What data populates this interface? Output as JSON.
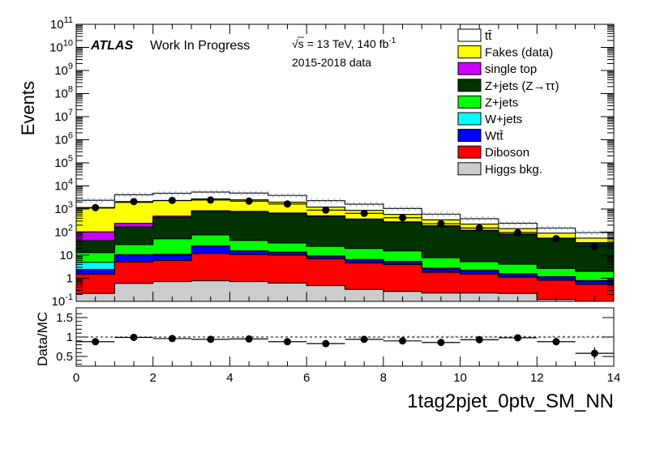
{
  "header": {
    "atlas": "ATLAS",
    "status": "Work In Progress",
    "energy": "√s = 13 TeV, 140 fb",
    "lumi_exp": "-1",
    "dataset": "2015-2018 data"
  },
  "chart_data": [
    {
      "type": "stacked-histogram",
      "ylabel": "Events",
      "yscale": "log",
      "ylim": [
        0.1,
        100000000000
      ],
      "xlim": [
        0,
        14
      ],
      "bin_edges": [
        0,
        1,
        2,
        3,
        4,
        5,
        6,
        7,
        8,
        9,
        10,
        11,
        12,
        13,
        14
      ],
      "stack_order_bottom_to_top": [
        "Higgs bkg.",
        "Diboson",
        "Wtt̄",
        "W+jets",
        "Z+jets",
        "Z+jets (Z→ττ)",
        "single top",
        "Fakes (data)",
        "tt̄"
      ],
      "series": [
        {
          "name": "tt̄",
          "color": "#ffffff",
          "values": [
            1300,
            2200,
            2500,
            2700,
            2400,
            1900,
            1100,
            750,
            480,
            260,
            160,
            100,
            60,
            40
          ]
        },
        {
          "name": "Fakes (data)",
          "color": "#ffff00",
          "values": [
            1000,
            1700,
            1800,
            1900,
            1700,
            1300,
            700,
            500,
            300,
            150,
            100,
            60,
            35,
            20
          ]
        },
        {
          "name": "single top",
          "color": "#cc00ff",
          "values": [
            60,
            70,
            60,
            60,
            50,
            40,
            30,
            20,
            15,
            10,
            5,
            3,
            2,
            1
          ]
        },
        {
          "name": "Z+jets (Z→ττ)",
          "color": "#003300",
          "values": [
            30,
            140,
            380,
            700,
            700,
            600,
            450,
            330,
            250,
            170,
            110,
            75,
            50,
            32
          ]
        },
        {
          "name": "Z+jets",
          "color": "#00ff00",
          "values": [
            8,
            18,
            40,
            50,
            28,
            20,
            15,
            13,
            10,
            5,
            3,
            2.5,
            1.5,
            1.2
          ]
        },
        {
          "name": "W+jets",
          "color": "#00ffff",
          "values": [
            2.5,
            0.5,
            1,
            1,
            0.6,
            0.5,
            0.3,
            0.3,
            0.2,
            0.1,
            0.1,
            0.05,
            0.05,
            0.05
          ]
        },
        {
          "name": "Wtt̄",
          "color": "#0000ff",
          "values": [
            0.9,
            5,
            4,
            13,
            4,
            3,
            2,
            1.6,
            1.2,
            0.8,
            0.6,
            0.4,
            0.3,
            0.2
          ]
        },
        {
          "name": "Diboson",
          "color": "#ff0000",
          "values": [
            1.3,
            4.5,
            5.2,
            11,
            10,
            9.5,
            6.5,
            4.3,
            3.7,
            1.6,
            1.3,
            0.9,
            0.7,
            0.45
          ]
        },
        {
          "name": "Higgs bkg.",
          "color": "#cccccc",
          "values": [
            0.22,
            0.6,
            0.72,
            0.78,
            0.72,
            0.62,
            0.48,
            0.33,
            0.27,
            0.23,
            0.23,
            0.22,
            0.12,
            0.1
          ]
        }
      ],
      "data_points": {
        "name": "Data",
        "x": [
          0.5,
          1.5,
          2.5,
          3.5,
          4.5,
          5.5,
          6.5,
          7.5,
          8.5,
          9.5,
          10.5,
          11.5,
          12.5,
          13.5
        ],
        "y": [
          1150,
          2100,
          2350,
          2450,
          2200,
          1650,
          900,
          650,
          420,
          230,
          150,
          95,
          52,
          24
        ]
      },
      "legend_position": "top-right"
    },
    {
      "type": "ratio",
      "ylabel": "Data/MC",
      "xlabel": "1tag2pjet_0ptv_SM_NN",
      "ylim": [
        0.25,
        1.75
      ],
      "yticks": [
        0.5,
        1,
        1.5
      ],
      "xticks": [
        0,
        2,
        4,
        6,
        8,
        10,
        12,
        14
      ],
      "x": [
        0.5,
        1.5,
        2.5,
        3.5,
        4.5,
        5.5,
        6.5,
        7.5,
        8.5,
        9.5,
        10.5,
        11.5,
        12.5,
        13.5
      ],
      "y": [
        0.88,
        0.99,
        0.96,
        0.94,
        0.95,
        0.88,
        0.83,
        0.94,
        0.9,
        0.86,
        0.93,
        0.98,
        0.88,
        0.58
      ],
      "yerr": [
        0.02,
        0.02,
        0.02,
        0.02,
        0.02,
        0.02,
        0.03,
        0.03,
        0.04,
        0.05,
        0.06,
        0.08,
        0.1,
        0.15
      ]
    }
  ]
}
